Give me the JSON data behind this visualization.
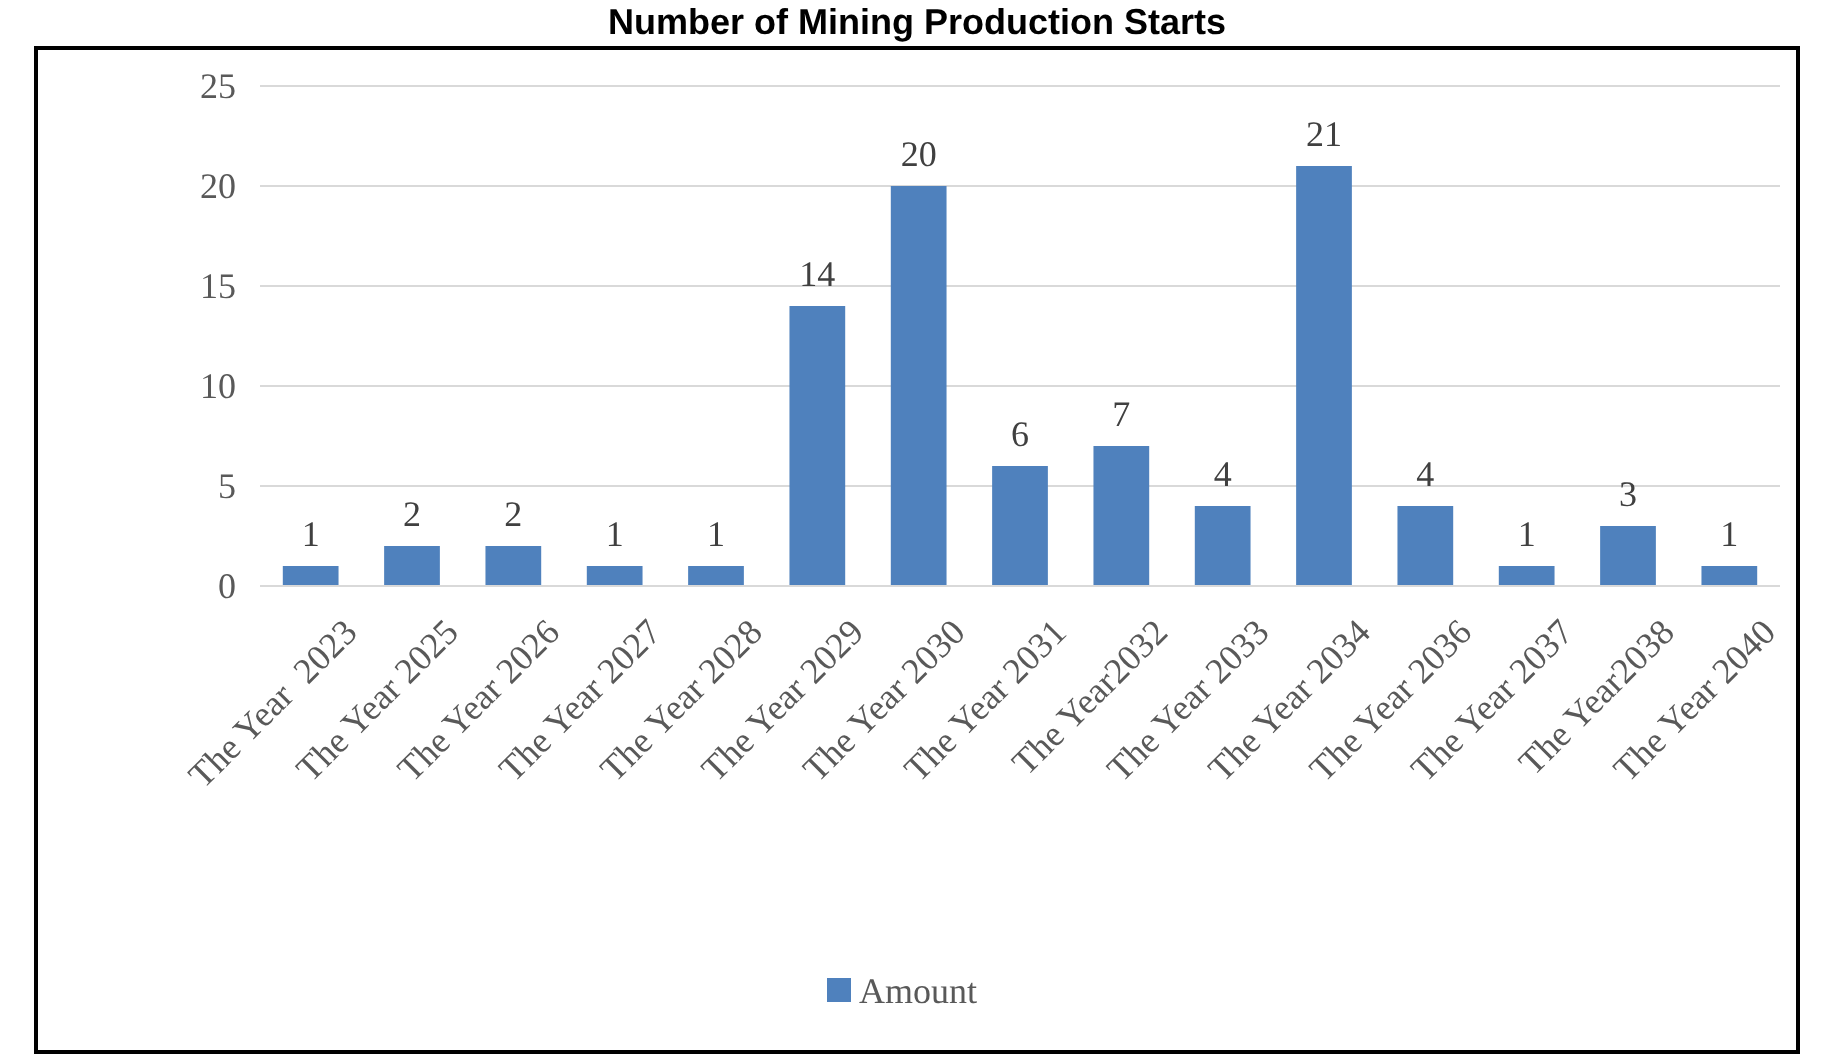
{
  "chart_data": {
    "type": "bar",
    "title": "Number of Mining Production Starts",
    "categories": [
      "The Year  2023",
      "The Year 2025",
      "The Year 2026",
      "The Year 2027",
      "The Year 2028",
      "The Year 2029",
      "The Year 2030",
      "The Year 2031",
      "The Year2032",
      "The Year 2033",
      "The Year 2034",
      "The Year 2036",
      "The Year 2037",
      "The Year2038",
      "The Year 2040"
    ],
    "series": [
      {
        "name": "Amount",
        "color": "#4f81bd",
        "values": [
          1,
          2,
          2,
          1,
          1,
          14,
          20,
          6,
          7,
          4,
          21,
          4,
          1,
          3,
          1
        ]
      }
    ],
    "ylim": [
      0,
      25
    ],
    "yticks": [
      0,
      5,
      10,
      15,
      20,
      25
    ],
    "grid": "y",
    "legend": "bottom",
    "data_labels": true
  }
}
